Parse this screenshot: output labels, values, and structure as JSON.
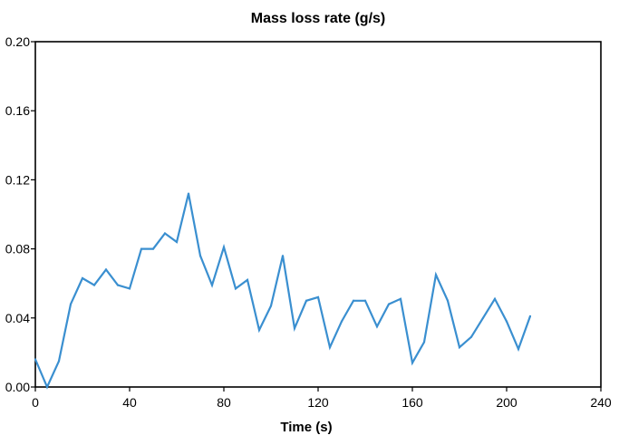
{
  "chart_data": {
    "type": "line",
    "title": "Mass loss rate (g/s)",
    "xlabel": "Time (s)",
    "ylabel": "",
    "xlim": [
      0,
      240
    ],
    "ylim": [
      0.0,
      0.2
    ],
    "x_ticks": [
      "0",
      "40",
      "80",
      "120",
      "160",
      "200",
      "240"
    ],
    "y_ticks": [
      "0.00",
      "0.04",
      "0.08",
      "0.12",
      "0.16",
      "0.20"
    ],
    "grid": false,
    "legend": "none",
    "line_color": "#3a8fd0",
    "series": [
      {
        "x": [
          0,
          5,
          10,
          15,
          20,
          25,
          30,
          35,
          40,
          45,
          50,
          55,
          60,
          65,
          70,
          75,
          80,
          85,
          90,
          95,
          100,
          105,
          110,
          115,
          120,
          125,
          130,
          135,
          140,
          145,
          150,
          155,
          160,
          165,
          170,
          175,
          180,
          185,
          190,
          195,
          200,
          205,
          210
        ],
        "values": [
          0.016,
          0.0,
          0.015,
          0.048,
          0.063,
          0.059,
          0.068,
          0.059,
          0.057,
          0.08,
          0.08,
          0.089,
          0.084,
          0.112,
          0.076,
          0.059,
          0.081,
          0.057,
          0.062,
          0.033,
          0.047,
          0.076,
          0.034,
          0.05,
          0.052,
          0.023,
          0.038,
          0.05,
          0.05,
          0.035,
          0.048,
          0.051,
          0.014,
          0.026,
          0.065,
          0.05,
          0.023,
          0.029,
          0.04,
          0.051,
          0.038,
          0.022,
          0.041
        ]
      }
    ]
  }
}
